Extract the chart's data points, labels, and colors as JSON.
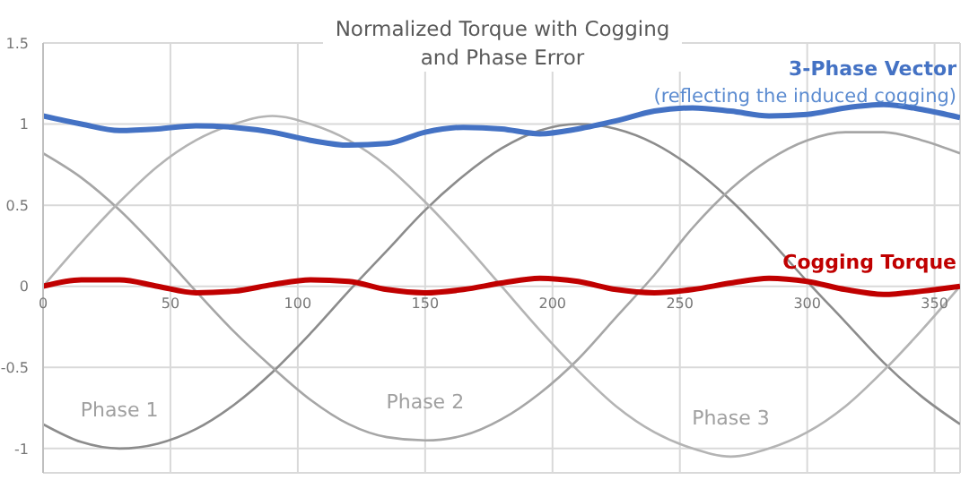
{
  "chart_data": {
    "type": "line",
    "title": "Normalized Torque with Cogging and Phase Error",
    "annotations": [
      "(reflecting the induced cogging)"
    ],
    "x": [
      0,
      15,
      30,
      45,
      60,
      75,
      90,
      105,
      120,
      135,
      150,
      165,
      180,
      195,
      210,
      225,
      240,
      255,
      270,
      285,
      300,
      315,
      330,
      345,
      360
    ],
    "xlim": [
      0,
      360
    ],
    "xticks": [
      0,
      50,
      100,
      150,
      200,
      250,
      300,
      350
    ],
    "ylim": [
      -1.15,
      1.5
    ],
    "yticks": [
      -1,
      -0.5,
      0,
      0.5,
      1,
      1.5
    ],
    "grid": true,
    "marker": "none",
    "series": [
      {
        "name": "Phase 1",
        "color": "#8c8c8c",
        "values": [
          -0.85,
          -0.96,
          -1.0,
          -0.97,
          -0.88,
          -0.73,
          -0.53,
          -0.29,
          -0.03,
          0.22,
          0.47,
          0.68,
          0.85,
          0.96,
          1.0,
          0.97,
          0.88,
          0.73,
          0.53,
          0.29,
          0.03,
          -0.22,
          -0.47,
          -0.68,
          -0.85
        ]
      },
      {
        "name": "Phase 2",
        "color": "#a6a6a6",
        "values": [
          0.82,
          0.67,
          0.47,
          0.23,
          -0.03,
          -0.28,
          -0.5,
          -0.7,
          -0.85,
          -0.93,
          -0.95,
          -0.92,
          -0.82,
          -0.66,
          -0.45,
          -0.19,
          0.07,
          0.36,
          0.6,
          0.78,
          0.9,
          0.95,
          0.95,
          0.9,
          0.82
        ]
      },
      {
        "name": "Phase 3",
        "color": "#b4b4b4",
        "values": [
          0,
          0.27,
          0.52,
          0.74,
          0.9,
          1.0,
          1.05,
          1.0,
          0.9,
          0.74,
          0.52,
          0.27,
          0,
          -0.27,
          -0.52,
          -0.74,
          -0.9,
          -1.0,
          -1.05,
          -1.0,
          -0.9,
          -0.74,
          -0.52,
          -0.27,
          0
        ]
      },
      {
        "name": "3-Phase Vector",
        "color": "#4472c4",
        "values": [
          1.05,
          1.0,
          0.96,
          0.97,
          0.99,
          0.98,
          0.95,
          0.9,
          0.87,
          0.88,
          0.95,
          0.98,
          0.97,
          0.94,
          0.97,
          1.02,
          1.08,
          1.1,
          1.08,
          1.05,
          1.06,
          1.1,
          1.12,
          1.09,
          1.04
        ]
      },
      {
        "name": "Cogging Torque",
        "color": "#c00000",
        "values": [
          0,
          0.04,
          0.04,
          0,
          -0.04,
          -0.03,
          0.01,
          0.04,
          0.03,
          -0.02,
          -0.04,
          -0.02,
          0.02,
          0.05,
          0.03,
          -0.02,
          -0.04,
          -0.02,
          0.02,
          0.05,
          0.03,
          -0.02,
          -0.05,
          -0.03,
          0
        ]
      }
    ]
  }
}
